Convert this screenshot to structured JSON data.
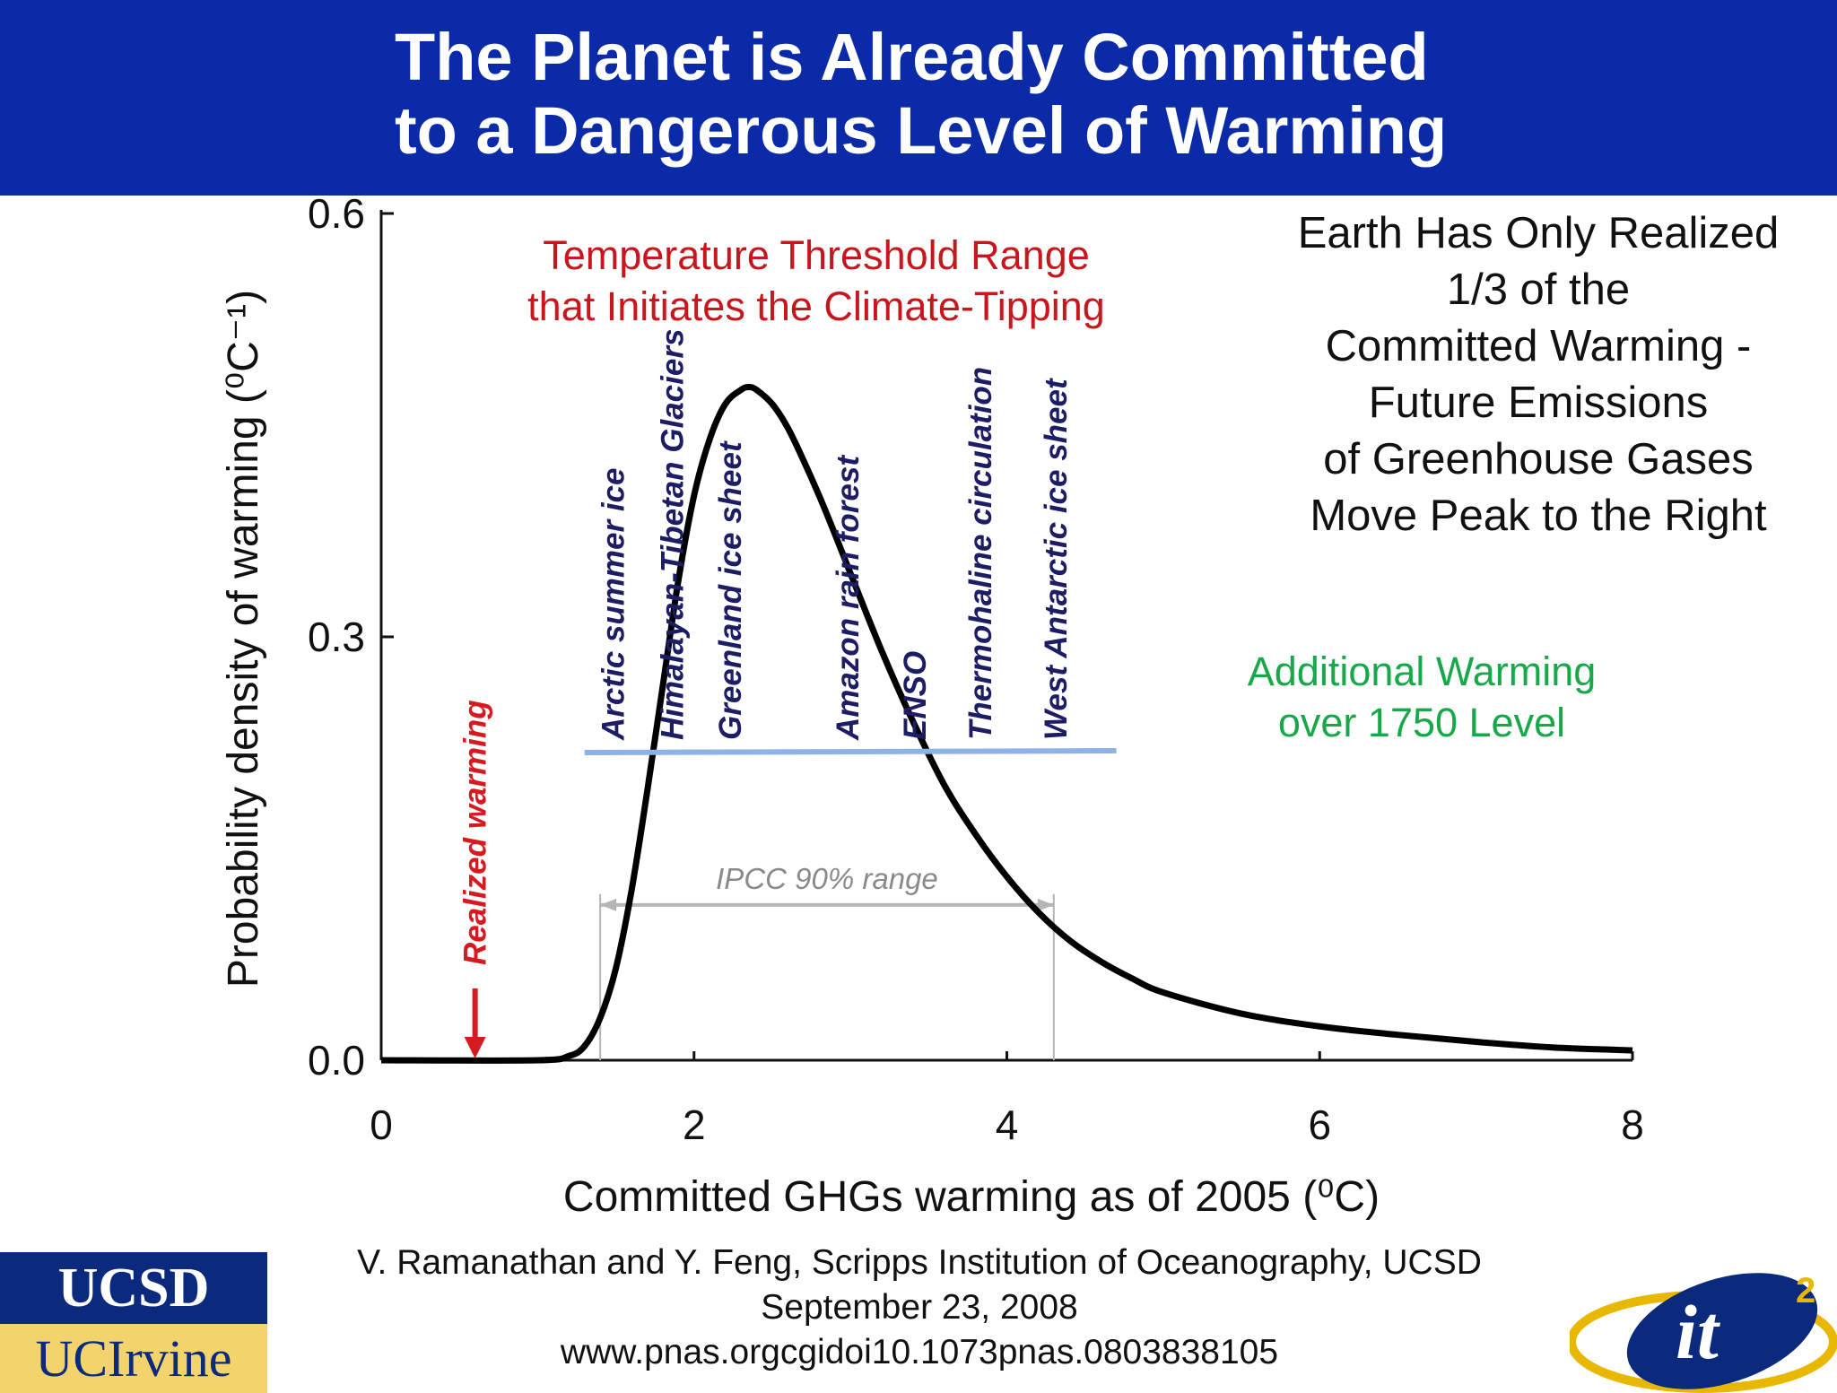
{
  "header": {
    "title_line_1": "The Planet is Already Committed",
    "title_line_2": "to a Dangerous Level of Warming",
    "background_color": "#0a2aa8"
  },
  "chart_data": {
    "type": "line",
    "title": "",
    "xlabel": "Committed GHGs warming as of 2005 (⁰C)",
    "ylabel": "Probability density of warming (⁰C⁻¹)",
    "xlim": [
      0,
      8
    ],
    "ylim": [
      0,
      0.6
    ],
    "x_ticks": [
      "0",
      "2",
      "4",
      "6",
      "8"
    ],
    "y_ticks": [
      "0.0",
      "0.3",
      "0.6"
    ],
    "grid": false,
    "series": [
      {
        "color": "#000000",
        "x": [
          0,
          1.0,
          1.2,
          1.3,
          1.4,
          1.5,
          1.6,
          1.7,
          1.8,
          1.9,
          2.0,
          2.1,
          2.2,
          2.3,
          2.35,
          2.4,
          2.5,
          2.6,
          2.7,
          2.8,
          2.9,
          3.0,
          3.2,
          3.4,
          3.6,
          3.8,
          4.0,
          4.2,
          4.4,
          4.6,
          4.8,
          5.0,
          5.5,
          6.0,
          6.5,
          7.0,
          7.5,
          8.0
        ],
        "y": [
          0,
          0.0,
          0.003,
          0.01,
          0.03,
          0.065,
          0.12,
          0.19,
          0.265,
          0.34,
          0.4,
          0.44,
          0.465,
          0.475,
          0.477,
          0.475,
          0.465,
          0.448,
          0.425,
          0.4,
          0.373,
          0.345,
          0.29,
          0.24,
          0.195,
          0.16,
          0.13,
          0.105,
          0.085,
          0.07,
          0.058,
          0.048,
          0.033,
          0.024,
          0.018,
          0.013,
          0.009,
          0.007
        ]
      }
    ],
    "realized_warming": {
      "label": "Realized warming",
      "x": 0.6,
      "color": "#d61a1f"
    },
    "ipcc_range": {
      "label": "IPCC 90% range",
      "x_start": 1.4,
      "x_end": 4.3,
      "y": 0.11,
      "color": "#b5b5b5"
    },
    "threshold_line": {
      "x_start": 1.3,
      "x_end": 4.7,
      "y": 0.218,
      "color": "#8fb2e6"
    },
    "tipping_elements": [
      {
        "label": "Arctic summer ice",
        "x": 1.55
      },
      {
        "label": "Himalayan-Tibetan Glaciers",
        "x": 1.93
      },
      {
        "label": "Greenland ice sheet",
        "x": 2.3
      },
      {
        "label": "Amazon rain forest",
        "x": 3.05
      },
      {
        "label": "ENSO",
        "x": 3.48
      },
      {
        "label": "Thermohaline circulation",
        "x": 3.9
      },
      {
        "label": "West Antarctic ice sheet",
        "x": 4.38
      }
    ]
  },
  "annotations": {
    "threshold": [
      "Temperature Threshold Range",
      "that Initiates the Climate-Tipping"
    ],
    "realized": [
      "Earth Has Only Realized",
      "1/3 of the",
      "Committed Warming -",
      "Future Emissions",
      "of Greenhouse Gases",
      "Move Peak to the Right"
    ],
    "additional": [
      "Additional Warming",
      "over 1750 Level"
    ]
  },
  "citation": {
    "line_1": "V. Ramanathan and Y. Feng, Scripps Institution of Oceanography, UCSD",
    "line_2": "September 23, 2008",
    "line_3": "www.pnas.orgcgidoi10.1073pnas.0803838105"
  },
  "logos": {
    "ucsd": "UCSD",
    "uc_irvine": "UCIrvine",
    "it2": "it",
    "it2_superscript": "2"
  }
}
